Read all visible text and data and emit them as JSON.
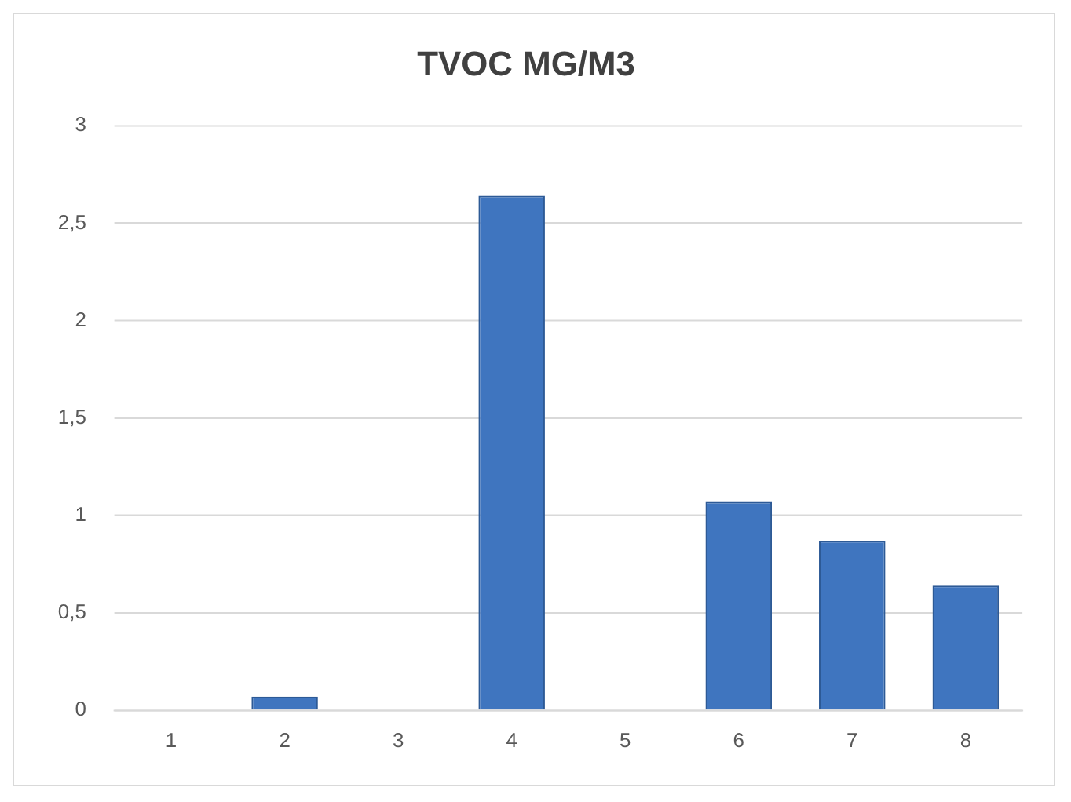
{
  "chart_data": {
    "type": "bar",
    "title": "TVOC MG/M3",
    "categories": [
      "1",
      "2",
      "3",
      "4",
      "5",
      "6",
      "7",
      "8"
    ],
    "values": [
      0,
      0.07,
      0,
      2.64,
      0,
      1.07,
      0.87,
      0.64
    ],
    "color": "#3f75bf",
    "ylim": [
      0,
      3
    ],
    "yticks": [
      0,
      {
        "value": 0.5,
        "label": "0,5"
      },
      1,
      {
        "value": 1.5,
        "label": "1,5"
      },
      2,
      {
        "value": 2.5,
        "label": "2,5"
      },
      3
    ],
    "grid": "y",
    "legend": false
  }
}
